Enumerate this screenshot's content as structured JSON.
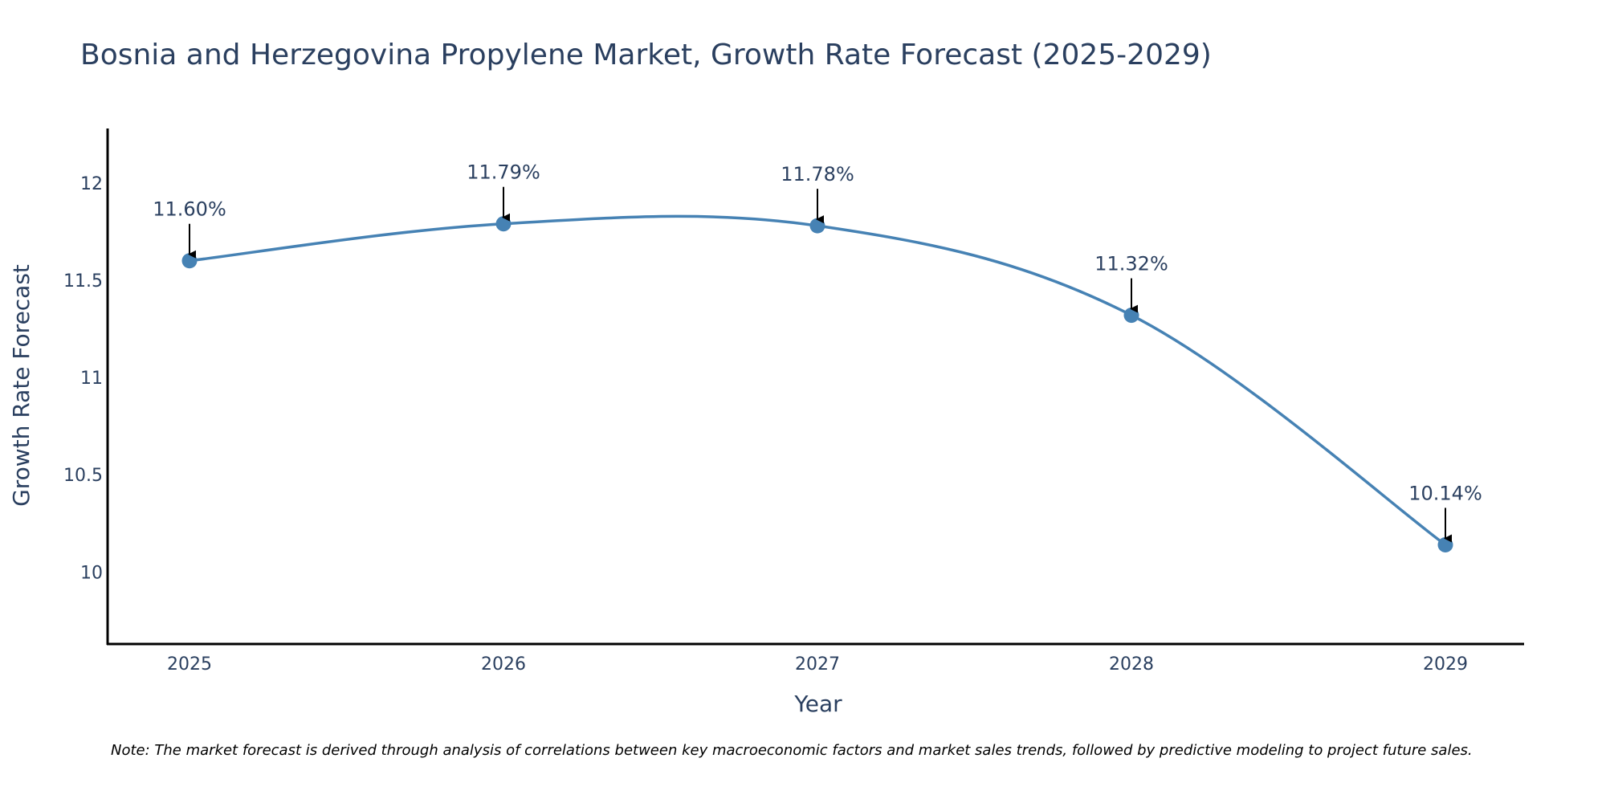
{
  "chart_data": {
    "type": "line",
    "title": "Bosnia and Herzegovina Propylene Market, Growth Rate Forecast (2025-2029)",
    "xlabel": "Year",
    "ylabel": "Growth Rate Forecast",
    "categories": [
      "2025",
      "2026",
      "2027",
      "2028",
      "2029"
    ],
    "values": [
      11.6,
      11.79,
      11.78,
      11.32,
      10.14
    ],
    "data_labels": [
      "11.60%",
      "11.79%",
      "11.78%",
      "11.32%",
      "10.14%"
    ],
    "ylim": [
      9.63,
      12.28
    ],
    "yticks": [
      10,
      10.5,
      11,
      11.5,
      12
    ],
    "ytick_labels": [
      "10",
      "10.5",
      "11",
      "11.5",
      "12"
    ],
    "grid": false,
    "line_shape": "spline",
    "colors": {
      "line": "#4682b4",
      "marker": "#4682b4",
      "arrow": "#000000",
      "text": "#2a3f5f",
      "axis": "#000000"
    },
    "note": "Note: The market forecast is derived through analysis of correlations between key macroeconomic factors and market sales trends, followed by predictive modeling to project future sales."
  }
}
